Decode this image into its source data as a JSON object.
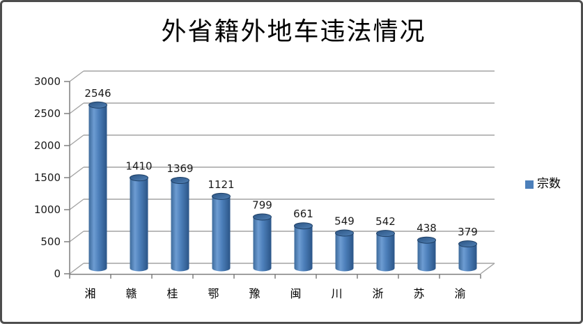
{
  "window": {
    "background": "#ffffff",
    "border_color": "#4d4d4d"
  },
  "title": "外省籍外地车违法情况",
  "legend": {
    "label": "宗数",
    "marker_color": "#4C7FBA",
    "position": "right"
  },
  "chart_data": {
    "type": "bar",
    "subtype": "3d-cylinder",
    "title": "外省籍外地车违法情况",
    "categories": [
      "湘",
      "赣",
      "桂",
      "鄂",
      "豫",
      "闽",
      "川",
      "浙",
      "苏",
      "渝"
    ],
    "series": [
      {
        "name": "宗数",
        "values": [
          2546,
          1410,
          1369,
          1121,
          799,
          661,
          549,
          542,
          438,
          379
        ]
      }
    ],
    "data_labels": [
      "2546",
      "1410",
      "1369",
      "1121",
      "799",
      "661",
      "549",
      "542",
      "438",
      "379"
    ],
    "xlabel": "",
    "ylabel": "",
    "ylim": [
      0,
      3000
    ],
    "ytick_interval": 500,
    "ytick_labels": [
      "0",
      "500",
      "1000",
      "1500",
      "2000",
      "2500",
      "3000"
    ],
    "grid": true,
    "legend_position": "right",
    "colors": {
      "bar_mid": "#4C7FBA",
      "bar_light": "#6D9CD2",
      "bar_edge_left": "#3D6A9B",
      "bar_dark": "#2B5587",
      "bar_top_dark": "#2D5685",
      "bar_top_light": "#5080B5",
      "bar_rim": "#1F4066",
      "grid_line": "#a3a3a3",
      "axis_line": "#7f7f7f",
      "text": "#1a1a1a"
    }
  }
}
